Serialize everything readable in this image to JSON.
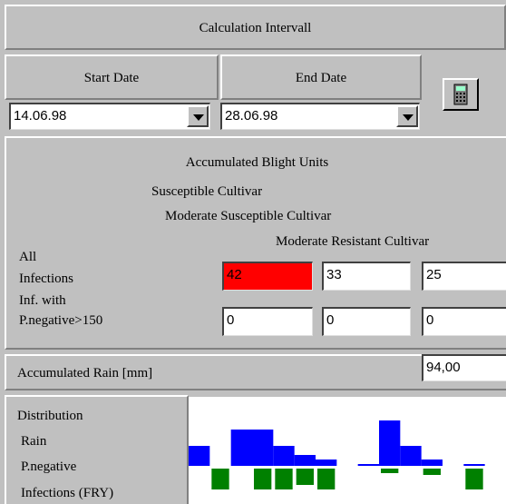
{
  "header": {
    "title": "Calculation Intervall"
  },
  "dates": {
    "start_label": "Start Date",
    "end_label": "End Date",
    "start": "14.06.98",
    "end": "28.06.98"
  },
  "blight": {
    "title": "Accumulated Blight Units",
    "cultivars": [
      "Susceptible Cultivar",
      "Moderate Susceptible Cultivar",
      "Moderate Resistant Cultivar"
    ],
    "rows": [
      {
        "label_lines": [
          "All",
          "Infections"
        ],
        "values": [
          42,
          33,
          25
        ]
      },
      {
        "label_lines": [
          "Inf. with",
          "P.negative>150"
        ],
        "values": [
          0,
          0,
          0
        ]
      }
    ]
  },
  "rain": {
    "label": "Accumulated Rain [mm]",
    "value": "94,00"
  },
  "distribution": {
    "labels": [
      "Distribution",
      "Rain",
      "P.negative",
      "Infections (FRY)"
    ],
    "rain": [
      22,
      0,
      40,
      40,
      22,
      12,
      7,
      0,
      2,
      50,
      22,
      7,
      0,
      2,
      0
    ],
    "infections": [
      0,
      23,
      0,
      23,
      23,
      18,
      23,
      0,
      0,
      5,
      0,
      7,
      0,
      23,
      0
    ]
  }
}
